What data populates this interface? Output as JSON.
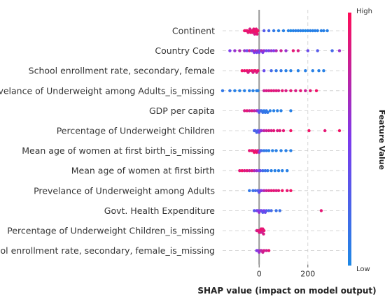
{
  "chart_data": {
    "type": "scatter",
    "subtype": "shap-beeswarm",
    "xlabel": "SHAP value (impact on model output)",
    "x_ticks": [
      0,
      200
    ],
    "xlim": [
      -150,
      350
    ],
    "grid": true,
    "colorbar": {
      "title": "Feature Value",
      "high_label": "High",
      "low_label": "Low",
      "low_color": "#1e88e5",
      "high_color": "#ff0d57"
    },
    "features": [
      {
        "name": "Continent",
        "points": [
          [
            -60,
            0.95
          ],
          [
            -50,
            0.95
          ],
          [
            -40,
            0.95
          ],
          [
            -35,
            0.95
          ],
          [
            -30,
            0.95
          ],
          [
            -25,
            0.95
          ],
          [
            -20,
            0.95
          ],
          [
            -15,
            0.95
          ],
          [
            -10,
            0.95
          ],
          [
            -5,
            0.95
          ],
          [
            -55,
            0.9
          ],
          [
            -45,
            0.9
          ],
          [
            -28,
            0.9
          ],
          [
            -22,
            0.9
          ],
          [
            -12,
            0.9
          ],
          [
            -8,
            0.9
          ],
          [
            -18,
            0.85
          ],
          [
            -38,
            0.85
          ],
          [
            20,
            0.3
          ],
          [
            40,
            0.2
          ],
          [
            60,
            0.1
          ],
          [
            80,
            0.05
          ],
          [
            100,
            0.05
          ],
          [
            120,
            0.05
          ],
          [
            130,
            0.0
          ],
          [
            140,
            0.05
          ],
          [
            150,
            0.05
          ],
          [
            160,
            0.05
          ],
          [
            170,
            0.05
          ],
          [
            180,
            0.05
          ],
          [
            190,
            0.0
          ],
          [
            200,
            0.05
          ],
          [
            210,
            0.05
          ],
          [
            220,
            0.05
          ],
          [
            230,
            0.05
          ],
          [
            240,
            0.05
          ],
          [
            255,
            0.05
          ],
          [
            265,
            0.05
          ],
          [
            280,
            0.05
          ]
        ]
      },
      {
        "name": "Country Code",
        "points": [
          [
            -120,
            0.5
          ],
          [
            -100,
            0.6
          ],
          [
            -80,
            0.7
          ],
          [
            -60,
            0.6
          ],
          [
            -50,
            0.4
          ],
          [
            -40,
            0.8
          ],
          [
            -30,
            0.3
          ],
          [
            -25,
            0.6
          ],
          [
            -20,
            0.5
          ],
          [
            -15,
            0.7
          ],
          [
            -10,
            0.4
          ],
          [
            -5,
            0.6
          ],
          [
            0,
            0.5
          ],
          [
            5,
            0.3
          ],
          [
            10,
            0.7
          ],
          [
            15,
            0.5
          ],
          [
            20,
            0.6
          ],
          [
            30,
            0.4
          ],
          [
            40,
            0.5
          ],
          [
            50,
            0.6
          ],
          [
            60,
            0.5
          ],
          [
            70,
            0.7
          ],
          [
            90,
            0.8
          ],
          [
            110,
            0.6
          ],
          [
            140,
            0.9
          ],
          [
            160,
            0.85
          ],
          [
            200,
            0.4
          ],
          [
            240,
            0.3
          ],
          [
            300,
            0.2
          ],
          [
            330,
            0.6
          ]
        ]
      },
      {
        "name": "School enrollment rate, secondary, female",
        "points": [
          [
            -70,
            0.95
          ],
          [
            -60,
            0.9
          ],
          [
            -50,
            0.95
          ],
          [
            -40,
            0.9
          ],
          [
            -30,
            0.95
          ],
          [
            -20,
            0.9
          ],
          [
            -15,
            0.95
          ],
          [
            -10,
            0.85
          ],
          [
            -5,
            0.9
          ],
          [
            -45,
            0.85
          ],
          [
            -25,
            0.85
          ],
          [
            20,
            0.4
          ],
          [
            50,
            0.2
          ],
          [
            70,
            0.1
          ],
          [
            90,
            0.1
          ],
          [
            110,
            0.05
          ],
          [
            130,
            0.05
          ],
          [
            160,
            0.05
          ],
          [
            190,
            0.05
          ],
          [
            220,
            0.05
          ],
          [
            245,
            0.05
          ],
          [
            265,
            0.05
          ]
        ]
      },
      {
        "name": "Prevelance of Underweight among Adults_is_missing",
        "points": [
          [
            -150,
            0.1
          ],
          [
            -120,
            0.1
          ],
          [
            -100,
            0.05
          ],
          [
            -80,
            0.05
          ],
          [
            -60,
            0.05
          ],
          [
            -40,
            0.05
          ],
          [
            -25,
            0.05
          ],
          [
            -10,
            0.05
          ],
          [
            -5,
            0.05
          ],
          [
            20,
            0.8
          ],
          [
            30,
            0.85
          ],
          [
            40,
            0.85
          ],
          [
            50,
            0.9
          ],
          [
            60,
            0.85
          ],
          [
            70,
            0.9
          ],
          [
            80,
            0.85
          ],
          [
            95,
            0.9
          ],
          [
            110,
            0.85
          ],
          [
            130,
            0.9
          ],
          [
            150,
            0.85
          ],
          [
            170,
            0.9
          ],
          [
            190,
            0.8
          ],
          [
            210,
            0.9
          ],
          [
            235,
            0.95
          ]
        ]
      },
      {
        "name": "GDP per capita",
        "points": [
          [
            -60,
            0.85
          ],
          [
            -50,
            0.9
          ],
          [
            -40,
            0.8
          ],
          [
            -30,
            0.85
          ],
          [
            -20,
            0.75
          ],
          [
            -10,
            0.7
          ],
          [
            -5,
            0.5
          ],
          [
            0,
            0.3
          ],
          [
            5,
            0.2
          ],
          [
            10,
            0.15
          ],
          [
            15,
            0.15
          ],
          [
            20,
            0.1
          ],
          [
            25,
            0.1
          ],
          [
            30,
            0.1
          ],
          [
            35,
            0.1
          ],
          [
            45,
            0.05
          ],
          [
            60,
            0.05
          ],
          [
            75,
            0.05
          ],
          [
            90,
            0.05
          ],
          [
            130,
            0.05
          ]
        ]
      },
      {
        "name": "Percentage of Underweight Children",
        "points": [
          [
            -20,
            0.2
          ],
          [
            -15,
            0.3
          ],
          [
            -10,
            0.2
          ],
          [
            -5,
            0.25
          ],
          [
            0,
            0.4
          ],
          [
            5,
            0.5
          ],
          [
            10,
            0.6
          ],
          [
            20,
            0.75
          ],
          [
            30,
            0.8
          ],
          [
            40,
            0.85
          ],
          [
            50,
            0.85
          ],
          [
            60,
            0.9
          ],
          [
            75,
            0.85
          ],
          [
            85,
            0.9
          ],
          [
            100,
            0.9
          ],
          [
            130,
            0.95
          ],
          [
            205,
            0.95
          ],
          [
            270,
            0.9
          ],
          [
            330,
            0.95
          ]
        ]
      },
      {
        "name": "Mean age of women at first birth_is_missing",
        "points": [
          [
            -40,
            0.9
          ],
          [
            -30,
            0.95
          ],
          [
            -25,
            0.9
          ],
          [
            -20,
            0.95
          ],
          [
            -15,
            0.9
          ],
          [
            -10,
            0.95
          ],
          [
            -5,
            0.85
          ],
          [
            0,
            0.6
          ],
          [
            5,
            0.3
          ],
          [
            10,
            0.2
          ],
          [
            20,
            0.1
          ],
          [
            30,
            0.1
          ],
          [
            40,
            0.05
          ],
          [
            55,
            0.05
          ],
          [
            70,
            0.05
          ],
          [
            90,
            0.05
          ],
          [
            110,
            0.05
          ],
          [
            130,
            0.05
          ]
        ]
      },
      {
        "name": "Mean age of women at first birth",
        "points": [
          [
            -80,
            0.9
          ],
          [
            -70,
            0.95
          ],
          [
            -60,
            0.85
          ],
          [
            -50,
            0.9
          ],
          [
            -40,
            0.8
          ],
          [
            -30,
            0.85
          ],
          [
            -20,
            0.7
          ],
          [
            -10,
            0.6
          ],
          [
            0,
            0.5
          ],
          [
            5,
            0.35
          ],
          [
            15,
            0.2
          ],
          [
            25,
            0.15
          ],
          [
            35,
            0.1
          ],
          [
            50,
            0.05
          ],
          [
            65,
            0.05
          ],
          [
            80,
            0.05
          ],
          [
            95,
            0.05
          ],
          [
            115,
            0.05
          ]
        ]
      },
      {
        "name": "Prevelance of Underweight among Adults",
        "points": [
          [
            -40,
            0.1
          ],
          [
            -25,
            0.15
          ],
          [
            -15,
            0.2
          ],
          [
            -5,
            0.25
          ],
          [
            0,
            0.35
          ],
          [
            5,
            0.45
          ],
          [
            10,
            0.55
          ],
          [
            20,
            0.7
          ],
          [
            30,
            0.8
          ],
          [
            40,
            0.85
          ],
          [
            50,
            0.9
          ],
          [
            60,
            0.9
          ],
          [
            70,
            0.85
          ],
          [
            80,
            0.9
          ],
          [
            95,
            0.95
          ],
          [
            115,
            0.9
          ],
          [
            130,
            0.95
          ]
        ]
      },
      {
        "name": "Govt. Health Expenditure",
        "points": [
          [
            -20,
            0.3
          ],
          [
            -10,
            0.4
          ],
          [
            -5,
            0.5
          ],
          [
            0,
            0.6
          ],
          [
            5,
            0.5
          ],
          [
            10,
            0.4
          ],
          [
            15,
            0.3
          ],
          [
            20,
            0.5
          ],
          [
            25,
            0.4
          ],
          [
            30,
            0.3
          ],
          [
            40,
            0.2
          ],
          [
            50,
            0.2
          ],
          [
            70,
            0.15
          ],
          [
            85,
            0.15
          ],
          [
            255,
            0.9
          ]
        ]
      },
      {
        "name": "Percentage of Underweight Children_is_missing",
        "points": [
          [
            -10,
            0.8
          ],
          [
            -5,
            0.9
          ],
          [
            0,
            0.85
          ],
          [
            3,
            0.9
          ],
          [
            5,
            0.85
          ],
          [
            8,
            0.9
          ],
          [
            10,
            0.95
          ],
          [
            12,
            0.8
          ],
          [
            15,
            0.9
          ],
          [
            18,
            0.85
          ],
          [
            20,
            0.9
          ]
        ]
      },
      {
        "name": "School enrollment rate, secondary, female_is_missing",
        "points": [
          [
            -10,
            0.5
          ],
          [
            -5,
            0.55
          ],
          [
            0,
            0.6
          ],
          [
            5,
            0.7
          ],
          [
            10,
            0.75
          ],
          [
            15,
            0.8
          ],
          [
            20,
            0.85
          ],
          [
            30,
            0.8
          ],
          [
            40,
            0.9
          ]
        ]
      }
    ]
  }
}
